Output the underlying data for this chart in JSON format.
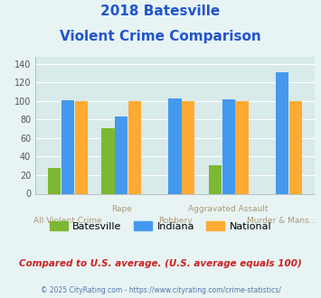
{
  "title_line1": "2018 Batesville",
  "title_line2": "Violent Crime Comparison",
  "categories": [
    "All Violent Crime",
    "Rape",
    "Robbery",
    "Aggravated Assault",
    "Murder & Mans..."
  ],
  "batesville": [
    28,
    71,
    0,
    31,
    0
  ],
  "indiana": [
    101,
    83,
    103,
    102,
    131
  ],
  "national": [
    100,
    100,
    100,
    100,
    100
  ],
  "has_batesville": [
    true,
    true,
    false,
    true,
    false
  ],
  "bar_color_batesville": "#7cb832",
  "bar_color_indiana": "#4499ee",
  "bar_color_national": "#ffaa33",
  "ylim": [
    0,
    148
  ],
  "yticks": [
    0,
    20,
    40,
    60,
    80,
    100,
    120,
    140
  ],
  "background_color": "#e8f4f4",
  "plot_bg": "#d8eaea",
  "legend_labels": [
    "Batesville",
    "Indiana",
    "National"
  ],
  "footnote1": "Compared to U.S. average. (U.S. average equals 100)",
  "footnote2": "© 2025 CityRating.com - https://www.cityrating.com/crime-statistics/",
  "xlabel_color": "#aa9977",
  "title_color": "#2255cc",
  "footnote1_color": "#cc2222",
  "footnote2_color": "#5577aa",
  "x_labels_upper": [
    "",
    "Rape",
    "",
    "Aggravated Assault",
    ""
  ],
  "x_labels_lower": [
    "All Violent Crime",
    "",
    "Robbery",
    "",
    "Murder & Mans..."
  ]
}
